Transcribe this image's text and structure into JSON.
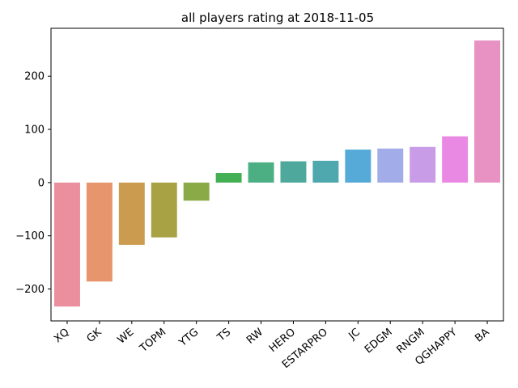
{
  "chart_data": {
    "type": "bar",
    "title": "all players rating at 2018-11-05",
    "xlabel": "",
    "ylabel": "",
    "categories": [
      "XQ",
      "GK",
      "WE",
      "TOPM",
      "YTG",
      "TS",
      "RW",
      "HERO",
      "ESTARPRO",
      "JC",
      "EDGM",
      "RNGM",
      "QGHAPPY",
      "BA"
    ],
    "values": [
      -233,
      -186,
      -117,
      -103,
      -34,
      18,
      38,
      40,
      41,
      62,
      64,
      67,
      87,
      267
    ],
    "colors": [
      "#eb8f9f",
      "#e6956c",
      "#cb9b4f",
      "#a9a245",
      "#89aa47",
      "#44af55",
      "#4caf84",
      "#4ea99c",
      "#4ea8ad",
      "#55aad8",
      "#a2ace8",
      "#c89ce6",
      "#ea89e4",
      "#e792c3"
    ],
    "yticks": [
      -200,
      -100,
      0,
      100,
      200
    ],
    "ylim": [
      -260,
      290
    ],
    "grid": false
  }
}
